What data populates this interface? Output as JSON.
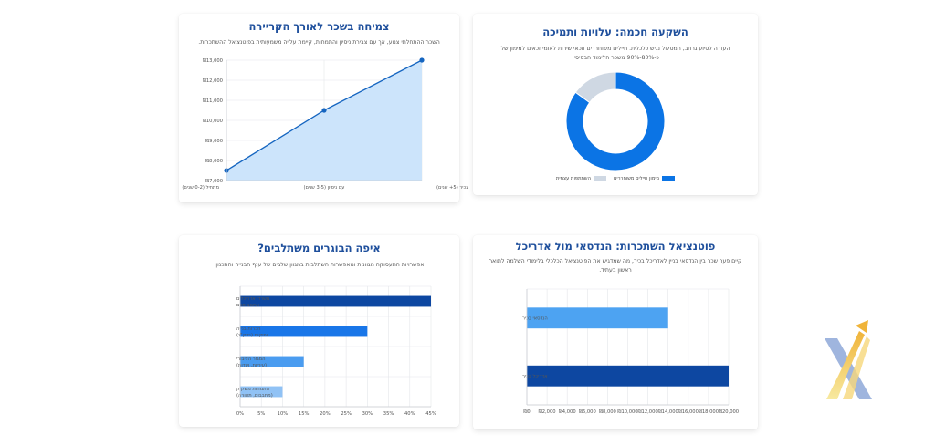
{
  "cards": {
    "career": {
      "title": "צמיחה בשכר לאורך הקריירה",
      "subtitle": "השכר ההתחלתי צנוע, אך עם צבירת ניסיון והתמחות, קיימת עלייה משמעותית בפוטנציאל ההשתכרות."
    },
    "investment": {
      "title": "השקעה חכמה: עלויות ותמיכה",
      "subtitle": "העזרה לסיוע גרחב, המסלול נגיש כלכלית. חיילים משוחררים וזכאי שירות לאומי זכאים למימון של כ-80%-90% משכר הלימוד הבסיסי!"
    },
    "employment": {
      "title": "איפה הבוגרים משתלבים?",
      "subtitle": "אפשרויות התעסוקה מגוונות ומאפשרות השתלבות במגוון שלבים של ענף הבנייה והתכנון."
    },
    "comparison": {
      "title": "פוטנציאל השתכרות: הנדסאי מול אדריכל",
      "subtitle": "קיים פער שכר בין הנדסאי בניין לאדריכל בכיר, מה שמדגיש את הפוטנציאל הכלכלי בלימודי השלמה לתואר ראשון בעתיד."
    }
  },
  "chart_data": [
    {
      "id": "career",
      "type": "area",
      "categories": [
        "מתחיל (0-2 שנים)",
        "עם ניסיון (3-5 שנים)",
        "בכיר (5+ שנים)"
      ],
      "values": [
        7500,
        10500,
        13000
      ],
      "ylim": [
        7000,
        13000
      ],
      "y_ticks": [
        7000,
        8000,
        9000,
        10000,
        11000,
        12000,
        13000
      ],
      "y_tick_labels": [
        "₪7,000",
        "₪8,000",
        "₪9,000",
        "₪10,000",
        "₪11,000",
        "₪12,000",
        "₪13,000"
      ],
      "color": "#1565c0",
      "fill": "#cce4fb",
      "grid": true
    },
    {
      "id": "investment",
      "type": "pie",
      "donut": true,
      "slices": [
        {
          "name": "מימון חיילים משוחררים",
          "value": 85,
          "color": "#0b74e5"
        },
        {
          "name": "השתתפות עצמית",
          "value": 15,
          "color": "#cfd8e3"
        }
      ],
      "legend": "bottom"
    },
    {
      "id": "employment",
      "type": "bar",
      "orientation": "horizontal",
      "categories": [
        [
          "משרדי אדריכלים",
          "ועיצוב פנים"
        ],
        [
          "חברות בנייה",
          "ופיקוח (בדק\"ג)"
        ],
        [
          "המגזר הציבורי",
          "(עיריות, ועדות)"
        ],
        [
          "התמחות משקיק",
          "(מחבבום, תאורה)"
        ]
      ],
      "values": [
        45,
        30,
        15,
        10
      ],
      "colors": [
        "#0d47a1",
        "#1976e8",
        "#4a9cf0",
        "#90c2f5"
      ],
      "xlim": [
        0,
        45
      ],
      "x_ticks": [
        0,
        5,
        10,
        15,
        20,
        25,
        30,
        35,
        40,
        45
      ],
      "x_tick_labels": [
        "0%",
        "5%",
        "10%",
        "15%",
        "20%",
        "25%",
        "30%",
        "35%",
        "40%",
        "45%"
      ],
      "grid": true
    },
    {
      "id": "comparison",
      "type": "bar",
      "orientation": "horizontal",
      "categories": [
        "הנדסאי בכיר",
        "אדריכל בכיר"
      ],
      "values": [
        14000,
        20000
      ],
      "colors": [
        "#4da3f2",
        "#0d47a1"
      ],
      "xlim": [
        0,
        20000
      ],
      "x_ticks": [
        0,
        2000,
        4000,
        6000,
        8000,
        10000,
        12000,
        14000,
        16000,
        18000,
        20000
      ],
      "x_tick_labels": [
        "₪0",
        "₪2,000",
        "₪4,000",
        "₪6,000",
        "₪8,000",
        "₪10,000",
        "₪12,000",
        "₪14,000",
        "₪16,000",
        "₪18,000",
        "₪20,000"
      ],
      "grid": true
    }
  ]
}
